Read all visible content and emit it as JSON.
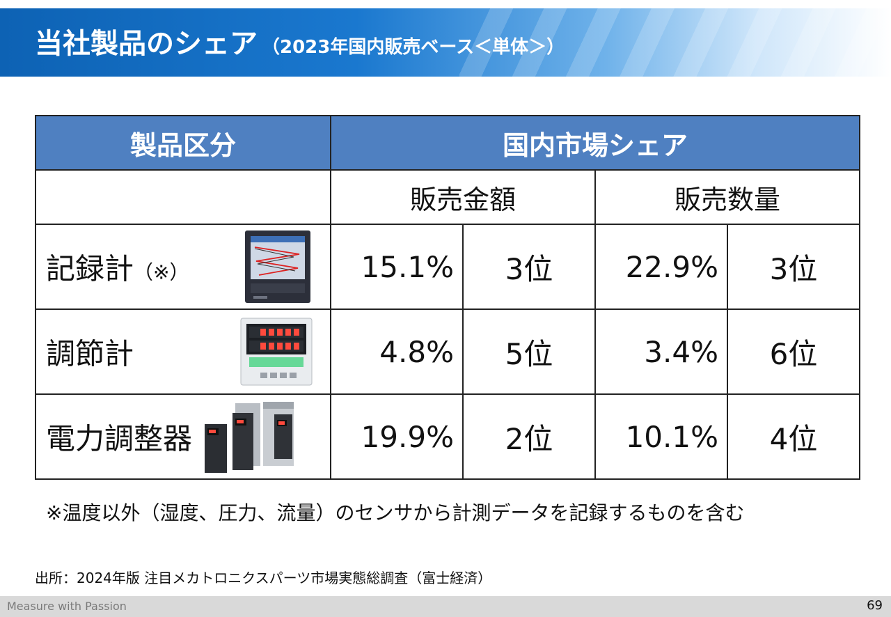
{
  "header": {
    "title": "当社製品のシェア",
    "subtitle": "（2023年国内販売ベース＜単体＞）"
  },
  "table": {
    "col_product": "製品区分",
    "col_share": "国内市場シェア",
    "col_sales_amount": "販売金額",
    "col_sales_volume": "販売数量",
    "rows": [
      {
        "name": "記録計",
        "note": "（※）",
        "amount_share": "15.1%",
        "amount_rank": "3位",
        "volume_share": "22.9%",
        "volume_rank": "3位",
        "image": "recorder-image"
      },
      {
        "name": "調節計",
        "note": "",
        "amount_share": "4.8%",
        "amount_rank": "5位",
        "volume_share": "3.4%",
        "volume_rank": "6位",
        "image": "controller-image"
      },
      {
        "name": "電力調整器",
        "note": "",
        "amount_share": "19.9%",
        "amount_rank": "2位",
        "volume_share": "10.1%",
        "volume_rank": "4位",
        "image": "power-regulator-image"
      }
    ]
  },
  "footnote": "※温度以外（湿度、圧力、流量）のセンサから計測データを記録するものを含む",
  "source": "出所：2024年版 注目メカトロニクスパーツ市場実態総調査（富士経済）",
  "footer": {
    "tagline": "Measure with Passion",
    "page_number": "69"
  },
  "colors": {
    "title_blue": "#0d62b4",
    "table_header": "#4f80c1"
  }
}
